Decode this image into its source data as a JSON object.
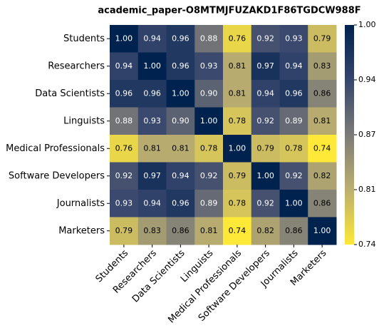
{
  "chart_data": {
    "type": "heatmap",
    "title": "academic_paper-O8MTMJFUZAKD1F86TGDCW988F",
    "categories": [
      "Students",
      "Researchers",
      "Data Scientists",
      "Linguists",
      "Medical Professionals",
      "Software Developers",
      "Journalists",
      "Marketers"
    ],
    "values": [
      [
        1.0,
        0.94,
        0.96,
        0.88,
        0.76,
        0.92,
        0.93,
        0.79
      ],
      [
        0.94,
        1.0,
        0.96,
        0.93,
        0.81,
        0.97,
        0.94,
        0.83
      ],
      [
        0.96,
        0.96,
        1.0,
        0.9,
        0.81,
        0.94,
        0.96,
        0.86
      ],
      [
        0.88,
        0.93,
        0.9,
        1.0,
        0.78,
        0.92,
        0.89,
        0.81
      ],
      [
        0.76,
        0.81,
        0.81,
        0.78,
        1.0,
        0.79,
        0.78,
        0.74
      ],
      [
        0.92,
        0.97,
        0.94,
        0.92,
        0.79,
        1.0,
        0.92,
        0.82
      ],
      [
        0.93,
        0.94,
        0.96,
        0.89,
        0.78,
        0.92,
        1.0,
        0.86
      ],
      [
        0.79,
        0.83,
        0.86,
        0.81,
        0.74,
        0.82,
        0.86,
        1.0
      ]
    ],
    "value_labels": [
      [
        "1.00",
        "0.94",
        "0.96",
        "0.88",
        "0.76",
        "0.92",
        "0.93",
        "0.79"
      ],
      [
        "0.94",
        "1.00",
        "0.96",
        "0.93",
        "0.81",
        "0.97",
        "0.94",
        "0.83"
      ],
      [
        "0.96",
        "0.96",
        "1.00",
        "0.90",
        "0.81",
        "0.94",
        "0.96",
        "0.86"
      ],
      [
        "0.88",
        "0.93",
        "0.90",
        "1.00",
        "0.78",
        "0.92",
        "0.89",
        "0.81"
      ],
      [
        "0.76",
        "0.81",
        "0.81",
        "0.78",
        "1.00",
        "0.79",
        "0.78",
        "0.74"
      ],
      [
        "0.92",
        "0.97",
        "0.94",
        "0.92",
        "0.79",
        "1.00",
        "0.92",
        "0.82"
      ],
      [
        "0.93",
        "0.94",
        "0.96",
        "0.89",
        "0.78",
        "0.92",
        "1.00",
        "0.86"
      ],
      [
        "0.79",
        "0.83",
        "0.86",
        "0.81",
        "0.74",
        "0.82",
        "0.86",
        "1.00"
      ]
    ],
    "colors": [
      "#fee838",
      "#bcaf6f",
      "#7c7b78",
      "#35456c",
      "#00224e"
    ],
    "clim": [
      0.74,
      1.0
    ],
    "cticks": [
      0.74,
      {
        "value": 0.805,
        "label": "0.81"
      },
      0.87,
      {
        "value": 0.935,
        "label": "0.94"
      },
      {
        "value": 1.0,
        "label": "1.00"
      }
    ]
  }
}
